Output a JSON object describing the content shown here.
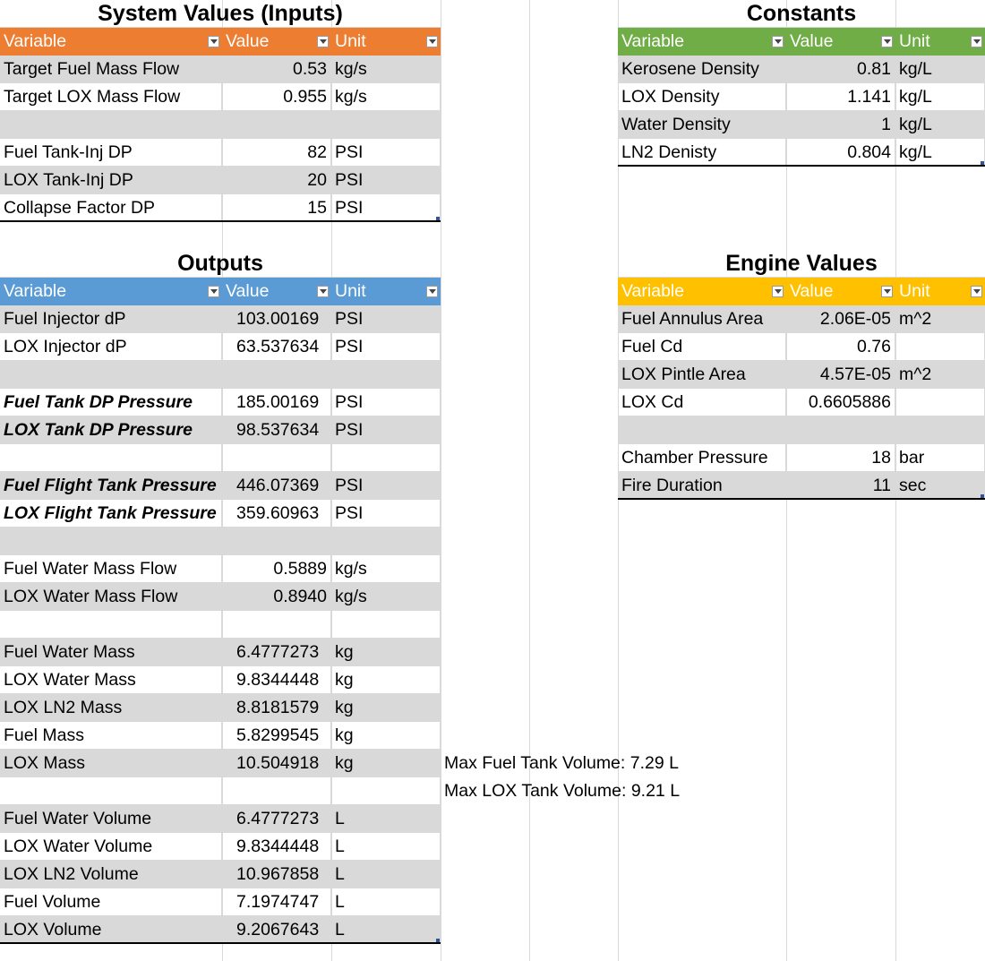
{
  "colors": {
    "inputs_header": "#ed7d31",
    "outputs_header": "#5b9bd5",
    "constants_header": "#70ad47",
    "engine_header": "#ffc000",
    "band": "#d9d9d9",
    "gridline": "#d9d9d9"
  },
  "icons": {
    "filter": "dropdown-arrow-icon"
  },
  "inputs": {
    "title": "System Values (Inputs)",
    "headers": [
      "Variable",
      "Value",
      "Unit"
    ],
    "rows": [
      [
        "Target Fuel Mass Flow",
        "0.53",
        "kg/s"
      ],
      [
        "Target LOX Mass Flow",
        "0.955",
        "kg/s"
      ],
      [
        "",
        "",
        ""
      ],
      [
        "Fuel Tank-Inj DP",
        "82",
        "PSI"
      ],
      [
        "LOX Tank-Inj DP",
        "20",
        "PSI"
      ],
      [
        "Collapse Factor DP",
        "15",
        "PSI"
      ]
    ]
  },
  "constants": {
    "title": "Constants",
    "headers": [
      "Variable",
      "Value",
      "Unit"
    ],
    "rows": [
      [
        "Kerosene Density",
        "0.81",
        "kg/L"
      ],
      [
        "LOX Density",
        "1.141",
        "kg/L"
      ],
      [
        "Water Density",
        "1",
        "kg/L"
      ],
      [
        "LN2 Denisty",
        "0.804",
        "kg/L"
      ]
    ]
  },
  "outputs": {
    "title": "Outputs",
    "headers": [
      "Variable",
      "Value",
      "Unit"
    ],
    "rows": [
      [
        "Fuel Injector dP",
        "103.00169",
        "PSI"
      ],
      [
        "LOX Injector dP",
        "63.537634",
        "PSI"
      ],
      [
        "",
        "",
        ""
      ],
      [
        "Fuel Tank DP Pressure",
        "185.00169",
        "PSI"
      ],
      [
        "LOX Tank DP Pressure",
        "98.537634",
        "PSI"
      ],
      [
        "",
        "",
        ""
      ],
      [
        "Fuel Flight Tank Pressure",
        "446.07369",
        "PSI"
      ],
      [
        "LOX Flight Tank Pressure",
        "359.60963",
        "PSI"
      ],
      [
        "",
        "",
        ""
      ],
      [
        "Fuel Water Mass Flow",
        "0.5889",
        "kg/s"
      ],
      [
        "LOX Water Mass Flow",
        "0.8940",
        "kg/s"
      ],
      [
        "",
        "",
        ""
      ],
      [
        "Fuel Water Mass",
        "6.4777273",
        "kg"
      ],
      [
        "LOX Water Mass",
        "9.8344448",
        "kg"
      ],
      [
        "LOX LN2 Mass",
        "8.8181579",
        "kg"
      ],
      [
        "Fuel Mass",
        "5.8299545",
        "kg"
      ],
      [
        "LOX Mass",
        "10.504918",
        "kg"
      ],
      [
        "",
        "",
        ""
      ],
      [
        "Fuel Water Volume",
        "6.4777273",
        "L"
      ],
      [
        "LOX Water Volume",
        "9.8344448",
        "L"
      ],
      [
        "LOX LN2 Volume",
        "10.967858",
        "L"
      ],
      [
        "Fuel Volume",
        "7.1974747",
        "L"
      ],
      [
        "LOX Volume",
        "9.2067643",
        "L"
      ]
    ]
  },
  "engine": {
    "title": "Engine Values",
    "headers": [
      "Variable",
      "Value",
      "Unit"
    ],
    "rows": [
      [
        "Fuel Annulus Area",
        "2.06E-05",
        "m^2"
      ],
      [
        "Fuel Cd",
        "0.76",
        ""
      ],
      [
        "LOX Pintle Area",
        "4.57E-05",
        "m^2"
      ],
      [
        "LOX Cd",
        "0.6605886",
        ""
      ],
      [
        "",
        "",
        ""
      ],
      [
        "Chamber Pressure",
        "18",
        "bar"
      ],
      [
        "Fire Duration",
        "11",
        "sec"
      ]
    ]
  },
  "notes": {
    "max_fuel": "Max Fuel Tank Volume: 7.29 L",
    "max_lox": "Max LOX Tank Volume: 9.21 L"
  }
}
